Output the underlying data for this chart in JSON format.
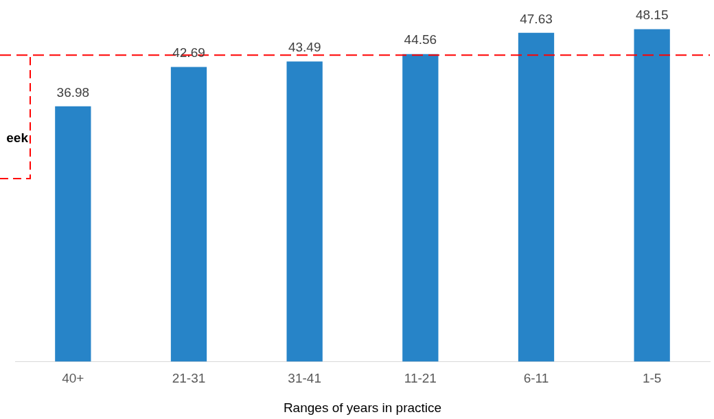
{
  "chart_data": {
    "type": "bar",
    "xlabel": "Ranges of years in practice",
    "categories": [
      "40+",
      "21-31",
      "31-41",
      "11-21",
      "6-11",
      "1-5"
    ],
    "values": [
      36.98,
      42.69,
      43.49,
      44.56,
      47.63,
      48.15
    ],
    "color": "#2784c8",
    "data_labels": true,
    "grid": false,
    "ref_lines": [
      {
        "axis": "y",
        "value": 44.4,
        "color": "#ff0000",
        "line_style": "dashed"
      }
    ],
    "annotations": [
      "eek"
    ]
  }
}
